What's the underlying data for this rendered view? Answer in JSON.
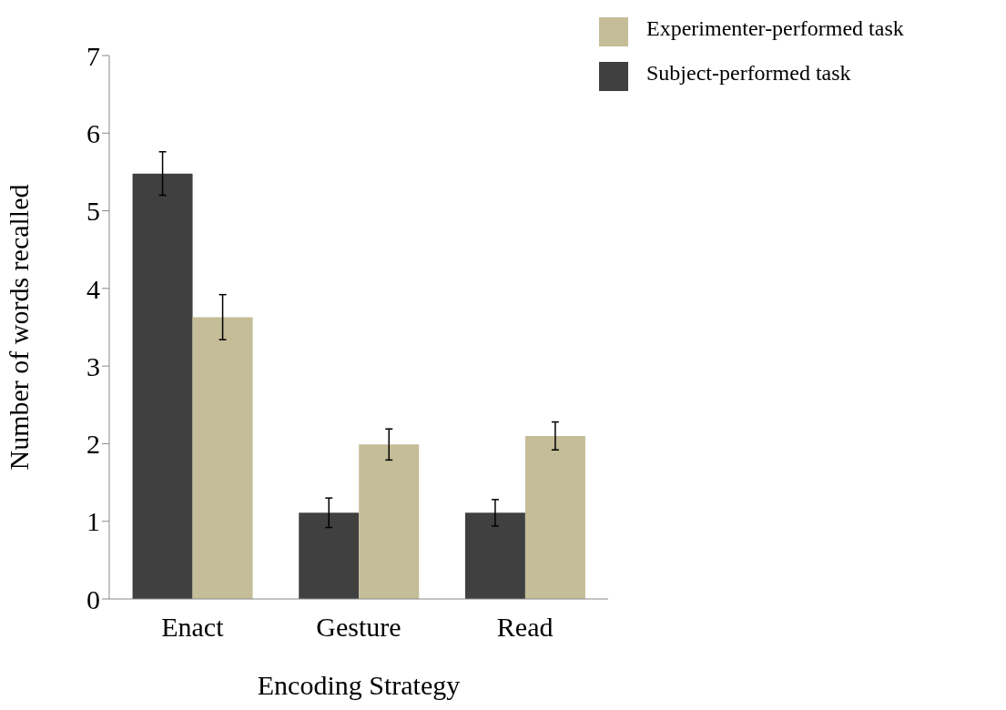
{
  "chart_data": {
    "type": "bar",
    "xlabel": "Encoding Strategy",
    "ylabel": "Number of words recalled",
    "categories": [
      "Enact",
      "Gesture",
      "Read"
    ],
    "series": [
      {
        "name": "Subject-performed task",
        "color": "#404040",
        "values": [
          5.48,
          1.11,
          1.11
        ],
        "errors": [
          0.28,
          0.19,
          0.17
        ]
      },
      {
        "name": "Experimenter-performed task",
        "color": "#c4bd97",
        "values": [
          3.63,
          1.99,
          2.1
        ],
        "errors": [
          0.29,
          0.2,
          0.18
        ]
      }
    ],
    "ylim": [
      0,
      7
    ],
    "yticks": [
      0,
      1,
      2,
      3,
      4,
      5,
      6,
      7
    ],
    "grid": false,
    "legend": "top right"
  }
}
